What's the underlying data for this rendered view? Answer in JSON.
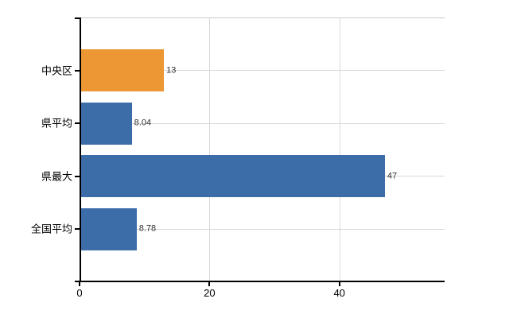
{
  "chart_data": {
    "type": "bar",
    "orientation": "horizontal",
    "title": "",
    "xlabel": "",
    "ylabel": "",
    "categories": [
      "中央区",
      "県平均",
      "県最大",
      "全国平均"
    ],
    "values": [
      13,
      8.04,
      47,
      8.78
    ],
    "value_labels": [
      "13",
      "8.04",
      "47",
      "8.78"
    ],
    "series": [
      {
        "name": "",
        "values": [
          13,
          8.04,
          47,
          8.78
        ]
      }
    ],
    "bar_colors": [
      "#EC9733",
      "#3D6DA9",
      "#3D6DA9",
      "#3D6DA9"
    ],
    "xlim": [
      0,
      56.2
    ],
    "x_ticks": [
      0,
      20,
      40
    ],
    "x_tick_labels": [
      "0",
      "20",
      "40"
    ],
    "grid": true,
    "legend": "none",
    "colors": {
      "axis": "#000000",
      "grid": "#d9d9d9",
      "top_border": "#c9c9c9",
      "value_text": "#303030",
      "label_text": "#000000",
      "background": "#ffffff"
    }
  }
}
